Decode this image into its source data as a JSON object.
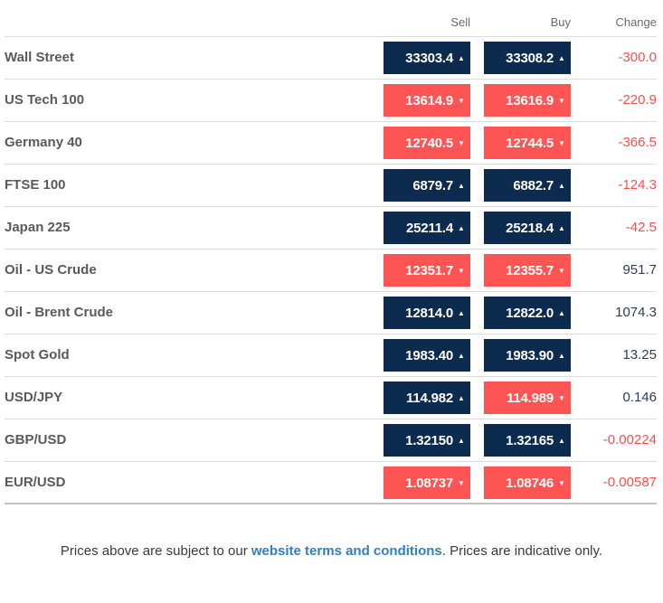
{
  "columns": {
    "sell": "Sell",
    "buy": "Buy",
    "change": "Change"
  },
  "rows": [
    {
      "name": "Wall Street",
      "sell": "33303.4",
      "buy": "33308.2",
      "sell_dir": "up",
      "buy_dir": "up",
      "change": "-300.0",
      "change_dir": "neg"
    },
    {
      "name": "US Tech 100",
      "sell": "13614.9",
      "buy": "13616.9",
      "sell_dir": "down",
      "buy_dir": "down",
      "change": "-220.9",
      "change_dir": "neg"
    },
    {
      "name": "Germany 40",
      "sell": "12740.5",
      "buy": "12744.5",
      "sell_dir": "down",
      "buy_dir": "down",
      "change": "-366.5",
      "change_dir": "neg"
    },
    {
      "name": "FTSE 100",
      "sell": "6879.7",
      "buy": "6882.7",
      "sell_dir": "up",
      "buy_dir": "up",
      "change": "-124.3",
      "change_dir": "neg"
    },
    {
      "name": "Japan 225",
      "sell": "25211.4",
      "buy": "25218.4",
      "sell_dir": "up",
      "buy_dir": "up",
      "change": "-42.5",
      "change_dir": "neg"
    },
    {
      "name": "Oil - US Crude",
      "sell": "12351.7",
      "buy": "12355.7",
      "sell_dir": "down",
      "buy_dir": "down",
      "change": "951.7",
      "change_dir": "pos"
    },
    {
      "name": "Oil - Brent Crude",
      "sell": "12814.0",
      "buy": "12822.0",
      "sell_dir": "up",
      "buy_dir": "up",
      "change": "1074.3",
      "change_dir": "pos"
    },
    {
      "name": "Spot Gold",
      "sell": "1983.40",
      "buy": "1983.90",
      "sell_dir": "up",
      "buy_dir": "up",
      "change": "13.25",
      "change_dir": "pos"
    },
    {
      "name": "USD/JPY",
      "sell": "114.982",
      "buy": "114.989",
      "sell_dir": "up",
      "buy_dir": "down",
      "change": "0.146",
      "change_dir": "pos"
    },
    {
      "name": "GBP/USD",
      "sell": "1.32150",
      "buy": "1.32165",
      "sell_dir": "up",
      "buy_dir": "up",
      "change": "-0.00224",
      "change_dir": "neg"
    },
    {
      "name": "EUR/USD",
      "sell": "1.08737",
      "buy": "1.08746",
      "sell_dir": "down",
      "buy_dir": "down",
      "change": "-0.00587",
      "change_dir": "neg"
    }
  ],
  "colors": {
    "up": "#0d2a4f",
    "down": "#ff5454",
    "negative": "#ff4d4d",
    "positive": "#2c3e55",
    "link": "#2f7fc1"
  },
  "icons": {
    "up": "caret-up-icon",
    "down": "caret-down-icon"
  },
  "footer": {
    "before": "Prices above are subject to our ",
    "link": "website terms and conditions",
    "after": ". Prices are indicative only."
  }
}
